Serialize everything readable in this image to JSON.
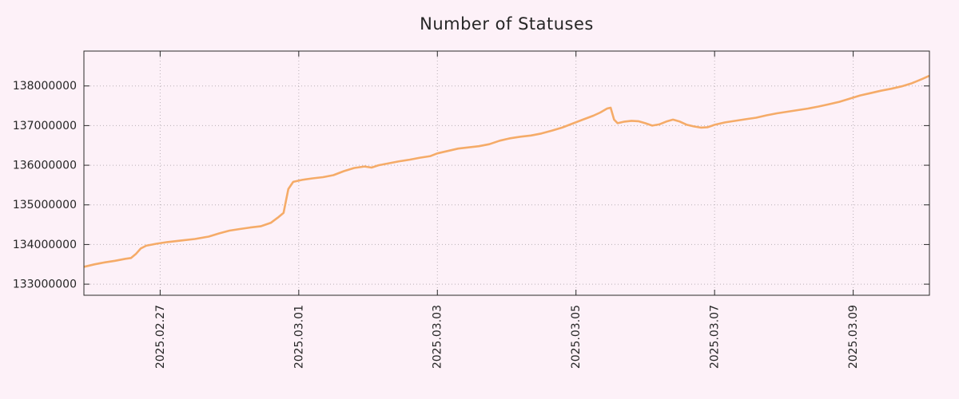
{
  "page": {
    "background": "#fdf1f8"
  },
  "chart_data": {
    "type": "line",
    "title": "Number of Statuses",
    "xlabel": "",
    "ylabel": "",
    "x_unit": "days since 2025-02-25 00:00",
    "grid": true,
    "legend": "none",
    "grid_color": "#b8b0b6",
    "axis_color": "#2a2a2a",
    "text_color": "#262626",
    "xlim": [
      0.9,
      13.1
    ],
    "ylim": [
      132720000,
      138880000
    ],
    "x_ticks": [
      {
        "pos": 2,
        "label": "2025.02.27"
      },
      {
        "pos": 4,
        "label": "2025.03.01"
      },
      {
        "pos": 6,
        "label": "2025.03.03"
      },
      {
        "pos": 8,
        "label": "2025.03.05"
      },
      {
        "pos": 10,
        "label": "2025.03.07"
      },
      {
        "pos": 12,
        "label": "2025.03.09"
      }
    ],
    "y_ticks": [
      {
        "pos": 133000000,
        "label": "133000000"
      },
      {
        "pos": 134000000,
        "label": "134000000"
      },
      {
        "pos": 135000000,
        "label": "135000000"
      },
      {
        "pos": 136000000,
        "label": "136000000"
      },
      {
        "pos": 137000000,
        "label": "137000000"
      },
      {
        "pos": 138000000,
        "label": "138000000"
      }
    ],
    "series": [
      {
        "name": "statuses",
        "color": "#f5ab68",
        "points": [
          [
            0.91,
            133440000
          ],
          [
            1.05,
            133500000
          ],
          [
            1.2,
            133550000
          ],
          [
            1.35,
            133590000
          ],
          [
            1.5,
            133640000
          ],
          [
            1.58,
            133660000
          ],
          [
            1.65,
            133760000
          ],
          [
            1.72,
            133900000
          ],
          [
            1.8,
            133970000
          ],
          [
            1.95,
            134020000
          ],
          [
            2.1,
            134060000
          ],
          [
            2.3,
            134100000
          ],
          [
            2.5,
            134140000
          ],
          [
            2.7,
            134200000
          ],
          [
            2.85,
            134280000
          ],
          [
            3.0,
            134350000
          ],
          [
            3.15,
            134390000
          ],
          [
            3.3,
            134430000
          ],
          [
            3.45,
            134460000
          ],
          [
            3.6,
            134550000
          ],
          [
            3.7,
            134680000
          ],
          [
            3.78,
            134800000
          ],
          [
            3.85,
            135400000
          ],
          [
            3.92,
            135580000
          ],
          [
            4.05,
            135630000
          ],
          [
            4.2,
            135670000
          ],
          [
            4.35,
            135700000
          ],
          [
            4.5,
            135750000
          ],
          [
            4.65,
            135850000
          ],
          [
            4.8,
            135930000
          ],
          [
            4.95,
            135970000
          ],
          [
            5.05,
            135940000
          ],
          [
            5.15,
            136000000
          ],
          [
            5.3,
            136050000
          ],
          [
            5.45,
            136100000
          ],
          [
            5.6,
            136140000
          ],
          [
            5.75,
            136190000
          ],
          [
            5.9,
            136230000
          ],
          [
            6.0,
            136300000
          ],
          [
            6.15,
            136360000
          ],
          [
            6.3,
            136420000
          ],
          [
            6.45,
            136450000
          ],
          [
            6.6,
            136480000
          ],
          [
            6.75,
            136530000
          ],
          [
            6.9,
            136620000
          ],
          [
            7.05,
            136680000
          ],
          [
            7.2,
            136720000
          ],
          [
            7.35,
            136750000
          ],
          [
            7.5,
            136800000
          ],
          [
            7.65,
            136870000
          ],
          [
            7.8,
            136950000
          ],
          [
            7.95,
            137050000
          ],
          [
            8.1,
            137150000
          ],
          [
            8.25,
            137250000
          ],
          [
            8.35,
            137330000
          ],
          [
            8.45,
            137430000
          ],
          [
            8.5,
            137450000
          ],
          [
            8.55,
            137150000
          ],
          [
            8.6,
            137060000
          ],
          [
            8.7,
            137100000
          ],
          [
            8.8,
            137120000
          ],
          [
            8.9,
            137110000
          ],
          [
            9.0,
            137060000
          ],
          [
            9.1,
            137000000
          ],
          [
            9.2,
            137030000
          ],
          [
            9.3,
            137100000
          ],
          [
            9.4,
            137150000
          ],
          [
            9.5,
            137100000
          ],
          [
            9.6,
            137020000
          ],
          [
            9.7,
            136980000
          ],
          [
            9.8,
            136950000
          ],
          [
            9.9,
            136960000
          ],
          [
            10.0,
            137020000
          ],
          [
            10.15,
            137080000
          ],
          [
            10.3,
            137120000
          ],
          [
            10.45,
            137160000
          ],
          [
            10.6,
            137200000
          ],
          [
            10.75,
            137260000
          ],
          [
            10.9,
            137310000
          ],
          [
            11.05,
            137350000
          ],
          [
            11.2,
            137390000
          ],
          [
            11.35,
            137430000
          ],
          [
            11.5,
            137480000
          ],
          [
            11.65,
            137540000
          ],
          [
            11.8,
            137600000
          ],
          [
            11.95,
            137680000
          ],
          [
            12.1,
            137760000
          ],
          [
            12.25,
            137820000
          ],
          [
            12.4,
            137880000
          ],
          [
            12.55,
            137930000
          ],
          [
            12.7,
            137990000
          ],
          [
            12.85,
            138070000
          ],
          [
            13.0,
            138180000
          ],
          [
            13.09,
            138250000
          ]
        ]
      }
    ]
  }
}
